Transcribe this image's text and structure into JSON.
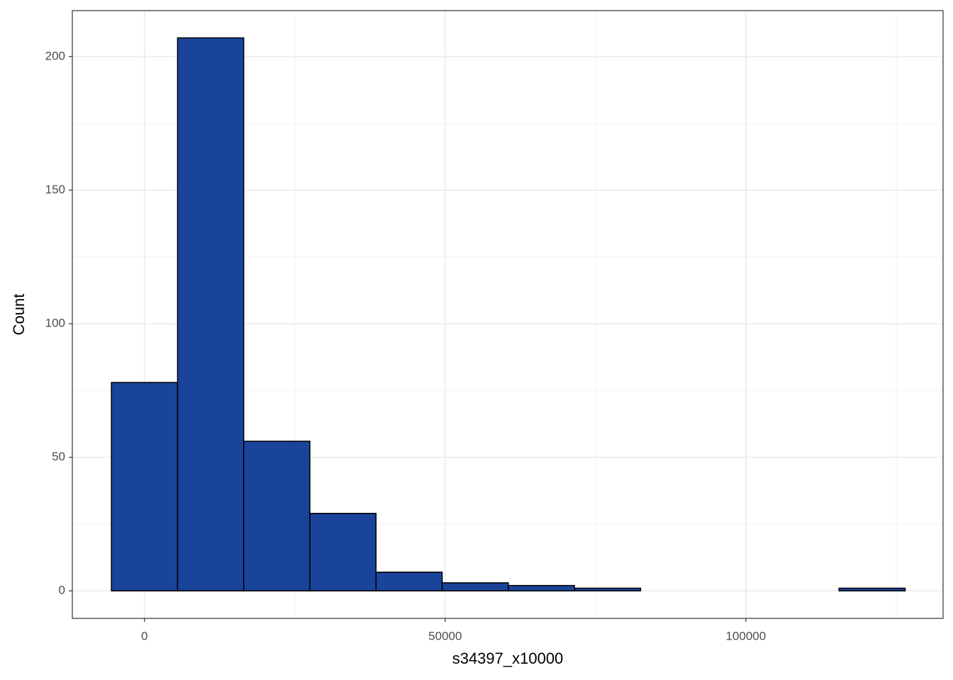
{
  "chart_data": {
    "type": "histogram",
    "x_label": "s34397_x10000",
    "y_label": "Count",
    "bins": [
      -5500,
      5500,
      16500,
      27500,
      38500,
      49500,
      60500,
      71500,
      82500,
      93500,
      104500,
      115500,
      126500
    ],
    "values": [
      78,
      207,
      56,
      29,
      7,
      3,
      2,
      1,
      0,
      0,
      0,
      1
    ],
    "color": "#1a4499",
    "edge_color": "#000000",
    "xlim": [
      -12000,
      132800
    ],
    "ylim": [
      -10.3,
      217.2
    ],
    "xticks": [
      0,
      50000,
      100000
    ],
    "yticks": [
      0,
      50,
      100,
      150,
      200
    ],
    "grid": true
  }
}
